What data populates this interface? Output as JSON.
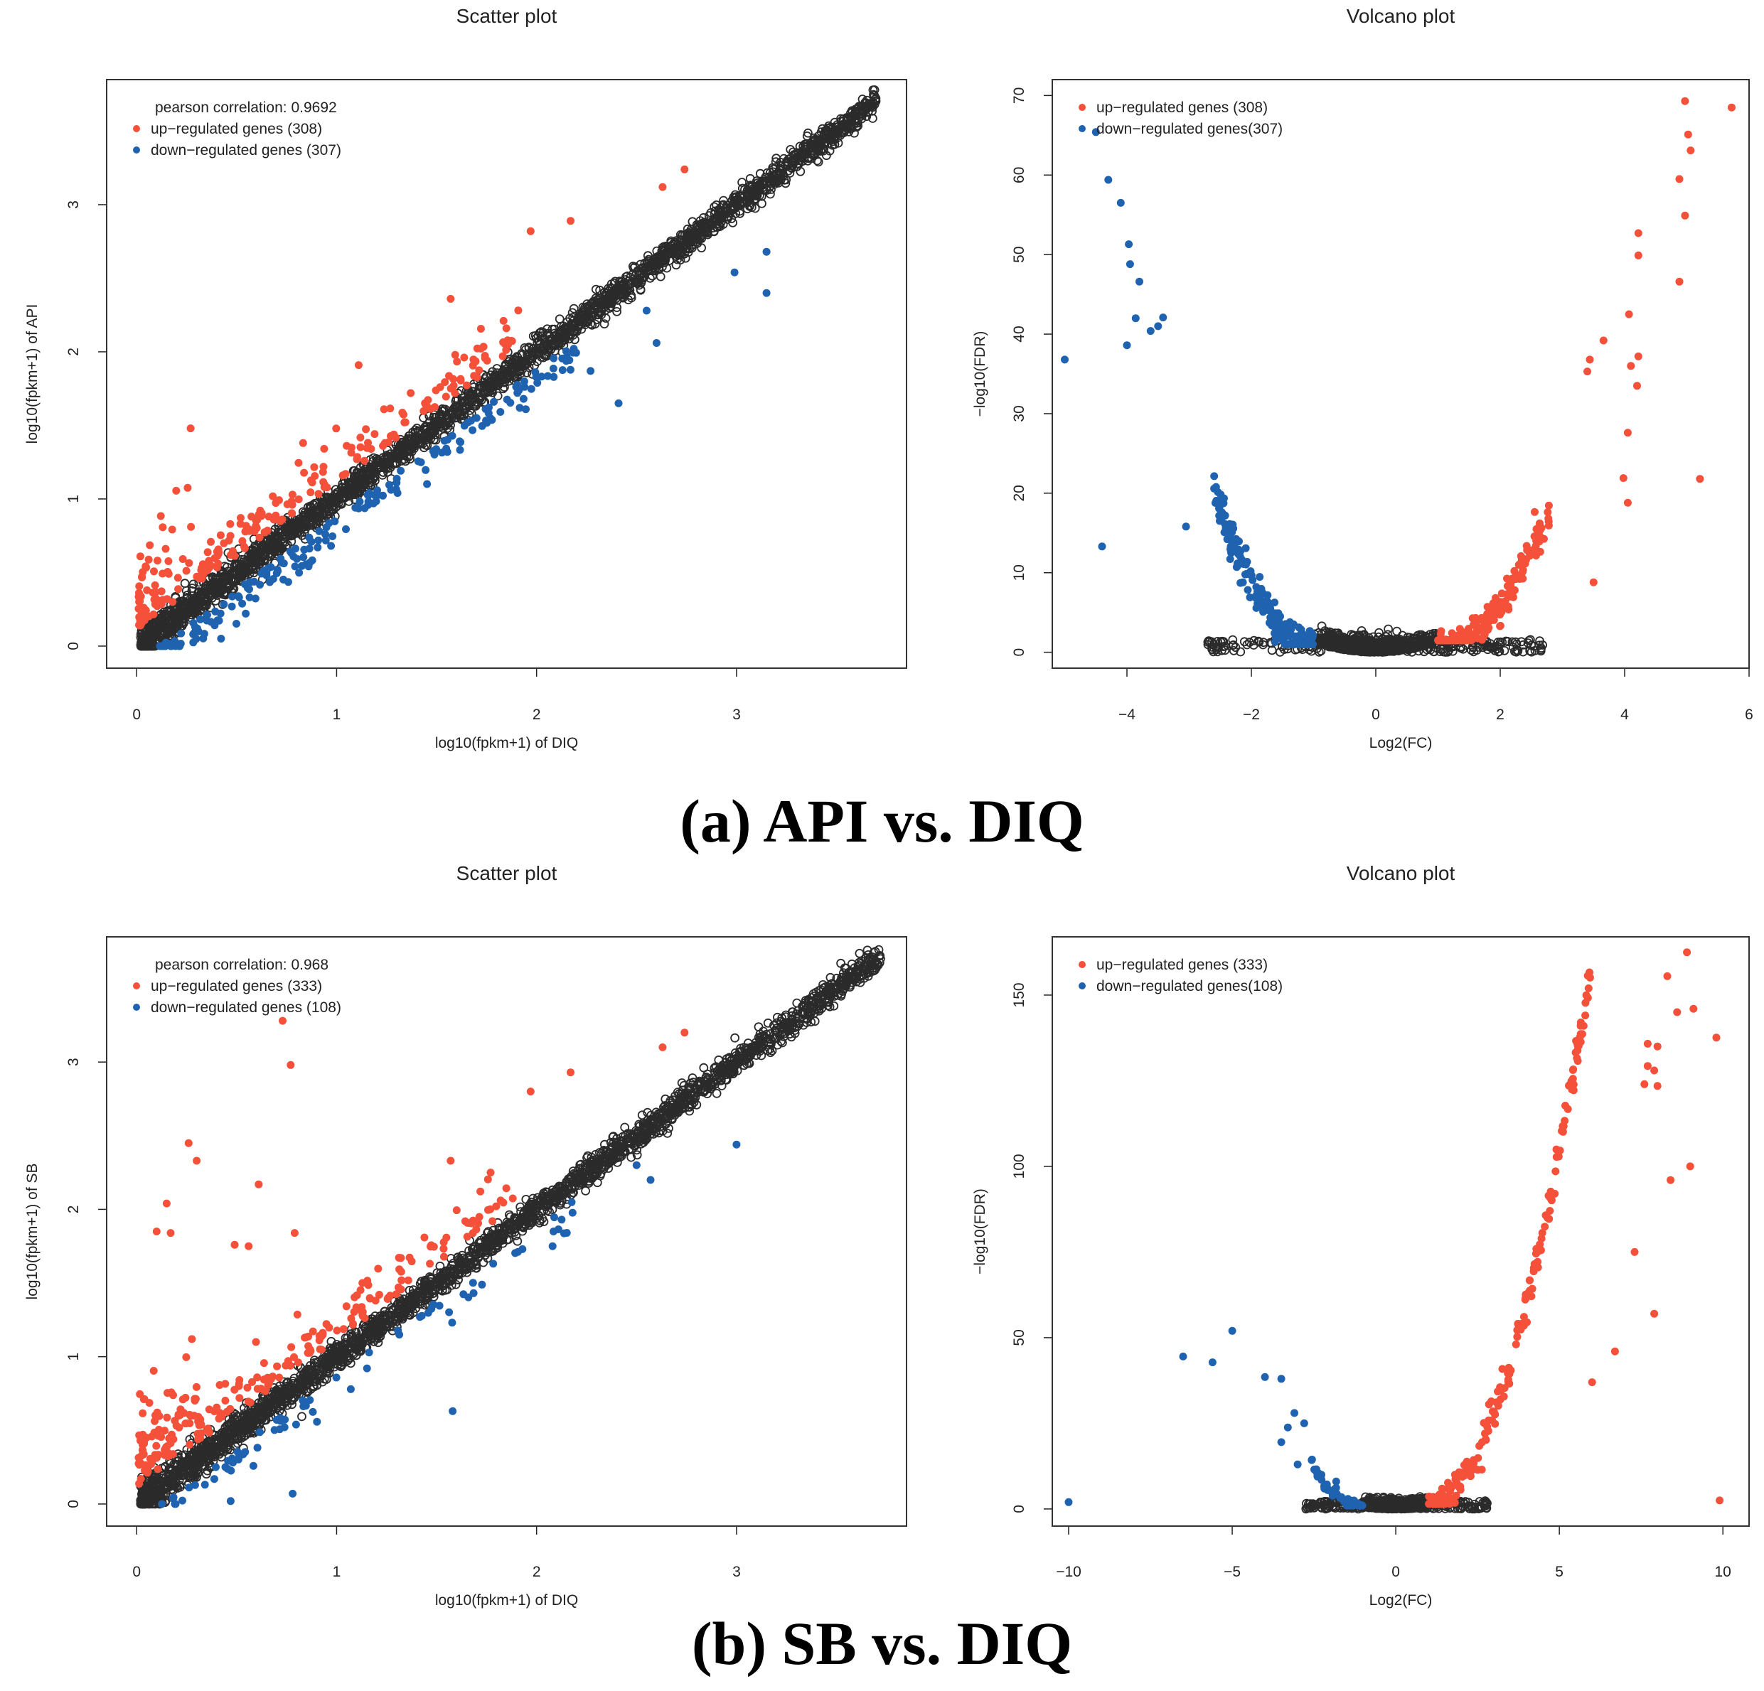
{
  "colors": {
    "up": "#f4503a",
    "down": "#1f63b0",
    "ns": "#2b2b2b"
  },
  "panels": [
    {
      "type": "scatter",
      "title": "Scatter plot",
      "xlabel": "log10(fpkm+1) of DIQ",
      "ylabel": "log10(fpkm+1) of API",
      "xlim": [
        -0.15,
        3.85
      ],
      "ylim": [
        -0.15,
        3.85
      ],
      "xticks": [
        "0",
        "1",
        "2",
        "3"
      ],
      "yticks": [
        "0",
        "1",
        "2",
        "3"
      ],
      "legend": [
        "pearson correlation: 0.9692",
        "up−regulated genes (308)",
        "down−regulated genes (307)"
      ],
      "legend_position": "top-left",
      "pearson": 0.9692,
      "n_up": 308,
      "n_down": 307,
      "max_value": 3.7,
      "outlier_up": [
        [
          2.74,
          3.24
        ],
        [
          2.63,
          3.12
        ],
        [
          2.17,
          2.89
        ],
        [
          1.97,
          2.82
        ],
        [
          1.57,
          2.36
        ],
        [
          1.11,
          1.91
        ],
        [
          0.27,
          1.48
        ]
      ],
      "outlier_down": [
        [
          3.15,
          2.68
        ],
        [
          3.15,
          2.4
        ],
        [
          2.99,
          2.54
        ],
        [
          2.55,
          2.28
        ],
        [
          2.6,
          2.06
        ],
        [
          2.27,
          1.87
        ],
        [
          2.41,
          1.65
        ]
      ]
    },
    {
      "type": "volcano",
      "title": "Volcano plot",
      "xlabel": "Log2(FC)",
      "ylabel": "−log10(FDR)",
      "xlim": [
        -5.2,
        6.0
      ],
      "ylim": [
        -2,
        72
      ],
      "xticks": [
        "−4",
        "−2",
        "0",
        "2",
        "4",
        "6"
      ],
      "yticks": [
        "0",
        "10",
        "20",
        "30",
        "40",
        "50",
        "60",
        "70"
      ],
      "legend": [
        "up−regulated genes (308)",
        "down−regulated genes(307)"
      ],
      "legend_position": "top-left",
      "n_up": 308,
      "n_down": 307,
      "extreme_up": [
        [
          4.97,
          69.3
        ],
        [
          5.72,
          68.5
        ],
        [
          5.02,
          65.1
        ],
        [
          5.06,
          63.1
        ],
        [
          4.88,
          59.5
        ],
        [
          4.97,
          54.9
        ],
        [
          4.22,
          52.7
        ],
        [
          4.22,
          49.9
        ],
        [
          4.88,
          46.6
        ],
        [
          4.07,
          42.5
        ],
        [
          3.66,
          39.2
        ],
        [
          4.22,
          37.2
        ],
        [
          3.44,
          36.8
        ],
        [
          4.1,
          36.0
        ],
        [
          3.4,
          35.3
        ],
        [
          4.2,
          33.5
        ],
        [
          4.05,
          27.6
        ],
        [
          5.21,
          21.8
        ],
        [
          3.98,
          21.9
        ],
        [
          4.05,
          18.8
        ],
        [
          3.5,
          8.8
        ]
      ],
      "extreme_down": [
        [
          -4.5,
          65.4
        ],
        [
          -4.3,
          59.4
        ],
        [
          -4.1,
          56.5
        ],
        [
          -3.97,
          51.3
        ],
        [
          -3.95,
          48.8
        ],
        [
          -3.8,
          46.6
        ],
        [
          -3.42,
          42.1
        ],
        [
          -3.86,
          42.0
        ],
        [
          -3.5,
          41.0
        ],
        [
          -3.62,
          40.4
        ],
        [
          -4.0,
          38.6
        ],
        [
          -5.0,
          36.8
        ],
        [
          -4.4,
          13.3
        ],
        [
          -3.05,
          15.8
        ]
      ]
    },
    {
      "type": "scatter",
      "title": "Scatter plot",
      "xlabel": "log10(fpkm+1) of DIQ",
      "ylabel": "log10(fpkm+1) of SB",
      "xlim": [
        -0.15,
        3.85
      ],
      "ylim": [
        -0.15,
        3.85
      ],
      "xticks": [
        "0",
        "1",
        "2",
        "3"
      ],
      "yticks": [
        "0",
        "1",
        "2",
        "3"
      ],
      "legend": [
        "pearson correlation: 0.968",
        "up−regulated genes (333)",
        "down−regulated genes (108)"
      ],
      "legend_position": "top-left",
      "pearson": 0.968,
      "n_up": 333,
      "n_down": 108,
      "max_value": 3.72,
      "outlier_up": [
        [
          0.73,
          3.28
        ],
        [
          0.77,
          2.98
        ],
        [
          2.74,
          3.2
        ],
        [
          2.63,
          3.1
        ],
        [
          2.17,
          2.93
        ],
        [
          1.97,
          2.8
        ],
        [
          0.26,
          2.45
        ],
        [
          0.3,
          2.33
        ],
        [
          0.61,
          2.17
        ],
        [
          0.15,
          2.04
        ],
        [
          0.1,
          1.85
        ],
        [
          0.17,
          1.84
        ],
        [
          0.79,
          1.84
        ],
        [
          0.49,
          1.76
        ],
        [
          0.56,
          1.75
        ],
        [
          1.57,
          2.33
        ],
        [
          1.77,
          2.25
        ]
      ],
      "outlier_down": [
        [
          3.0,
          2.44
        ],
        [
          2.5,
          2.3
        ],
        [
          2.57,
          2.2
        ],
        [
          2.08,
          1.75
        ],
        [
          1.58,
          0.63
        ],
        [
          0.78,
          0.07
        ],
        [
          0.47,
          0.02
        ]
      ]
    },
    {
      "type": "volcano",
      "title": "Volcano plot",
      "xlabel": "Log2(FC)",
      "ylabel": "−log10(FDR)",
      "xlim": [
        -10.5,
        10.8
      ],
      "ylim": [
        -5,
        167
      ],
      "xticks": [
        "−10",
        "−5",
        "0",
        "5",
        "10"
      ],
      "yticks": [
        "0",
        "50",
        "100",
        "150"
      ],
      "legend": [
        "up−regulated genes (333)",
        "down−regulated genes(108)"
      ],
      "legend_position": "top-left",
      "n_up": 333,
      "n_down": 108,
      "extreme_up": [
        [
          8.9,
          162.5
        ],
        [
          8.3,
          155.5
        ],
        [
          9.1,
          146.0
        ],
        [
          8.6,
          145.0
        ],
        [
          9.8,
          137.6
        ],
        [
          7.7,
          135.8
        ],
        [
          8.0,
          135.0
        ],
        [
          7.7,
          129.3
        ],
        [
          7.9,
          128.0
        ],
        [
          8.0,
          123.5
        ],
        [
          7.6,
          124.0
        ],
        [
          9.0,
          100.0
        ],
        [
          9.9,
          2.5
        ],
        [
          6.0,
          37.0
        ],
        [
          6.7,
          46.0
        ],
        [
          7.3,
          75.0
        ],
        [
          7.9,
          57.0
        ],
        [
          8.4,
          96.0
        ]
      ],
      "extreme_down": [
        [
          -10.0,
          2.0
        ],
        [
          -6.5,
          44.5
        ],
        [
          -5.6,
          42.8
        ],
        [
          -5.0,
          52.0
        ],
        [
          -4.0,
          38.5
        ],
        [
          -3.5,
          38.0
        ],
        [
          -3.5,
          19.5
        ],
        [
          -3.3,
          23.8
        ],
        [
          -3.1,
          28.0
        ],
        [
          -2.8,
          25.0
        ],
        [
          -3.0,
          13.0
        ]
      ]
    }
  ],
  "captions": [
    "(a) API vs. DIQ",
    "(b) SB vs. DIQ"
  ],
  "chart_data": [
    {
      "type": "scatter",
      "title": "Scatter plot",
      "xlabel": "log10(fpkm+1) of DIQ",
      "ylabel": "log10(fpkm+1) of API",
      "xlim": [
        -0.15,
        3.85
      ],
      "ylim": [
        -0.15,
        3.85
      ],
      "series": [
        {
          "name": "up−regulated genes (308)",
          "color": "#f4503a",
          "count": 308
        },
        {
          "name": "down−regulated genes (307)",
          "color": "#1f63b0",
          "count": 307
        },
        {
          "name": "not significant",
          "color": "#2b2b2b"
        }
      ],
      "annotation": "pearson correlation: 0.9692"
    },
    {
      "type": "scatter",
      "title": "Volcano plot",
      "xlabel": "Log2(FC)",
      "ylabel": "−log10(FDR)",
      "xlim": [
        -5.2,
        6.0
      ],
      "ylim": [
        -2,
        72
      ],
      "series": [
        {
          "name": "up−regulated genes (308)",
          "color": "#f4503a",
          "count": 308
        },
        {
          "name": "down−regulated genes(307)",
          "color": "#1f63b0",
          "count": 307
        }
      ]
    },
    {
      "type": "scatter",
      "title": "Scatter plot",
      "xlabel": "log10(fpkm+1) of DIQ",
      "ylabel": "log10(fpkm+1) of SB",
      "xlim": [
        -0.15,
        3.85
      ],
      "ylim": [
        -0.15,
        3.85
      ],
      "series": [
        {
          "name": "up−regulated genes (333)",
          "color": "#f4503a",
          "count": 333
        },
        {
          "name": "down−regulated genes (108)",
          "color": "#1f63b0",
          "count": 108
        },
        {
          "name": "not significant",
          "color": "#2b2b2b"
        }
      ],
      "annotation": "pearson correlation: 0.968"
    },
    {
      "type": "scatter",
      "title": "Volcano plot",
      "xlabel": "Log2(FC)",
      "ylabel": "−log10(FDR)",
      "xlim": [
        -10.5,
        10.8
      ],
      "ylim": [
        -5,
        167
      ],
      "series": [
        {
          "name": "up−regulated genes (333)",
          "color": "#f4503a",
          "count": 333
        },
        {
          "name": "down−regulated genes(108)",
          "color": "#1f63b0",
          "count": 108
        }
      ]
    }
  ]
}
